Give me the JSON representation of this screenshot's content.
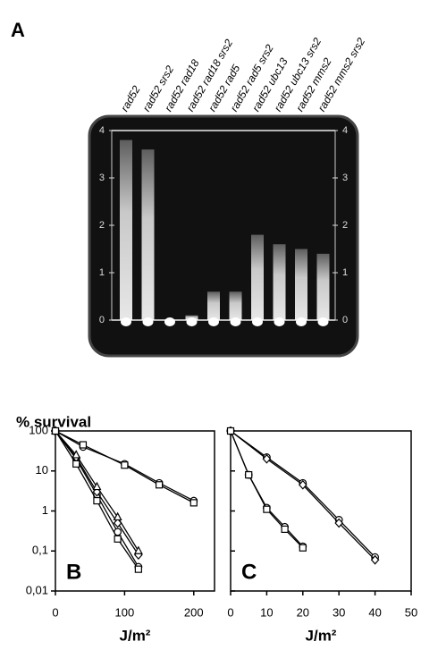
{
  "panel_a": {
    "label": "A",
    "lanes": [
      "rad52",
      "rad52 srs2",
      "rad52 rad18",
      "rad52 rad18 srs2",
      "rad52 rad5",
      "rad52 rad5 srs2",
      "rad52 ubc13",
      "rad52 ubc13 srs2",
      "rad52 mms2",
      "rad52 mms2 srs2"
    ],
    "growth": [
      3.8,
      3.6,
      0,
      0.1,
      0.6,
      0.6,
      1.8,
      1.6,
      1.5,
      1.4
    ],
    "ylim": [
      0,
      4
    ],
    "yticks": [
      0,
      1,
      2,
      3,
      4
    ]
  },
  "y_label": "% survival",
  "chart_data": [
    {
      "type": "line",
      "label": "B",
      "x_label": "J/m²",
      "log_y": true,
      "xlim": [
        0,
        230
      ],
      "xticks": [
        0,
        100,
        200
      ],
      "ylim": [
        0.01,
        100
      ],
      "yticks": [
        100,
        10,
        1,
        {
          "value": 0.1,
          "label": "0,1"
        },
        {
          "value": 0.01,
          "label": "0,01"
        }
      ],
      "series": [
        {
          "color": "#000000",
          "marker": "circle",
          "x": [
            0,
            40,
            100,
            150,
            200
          ],
          "values": [
            100,
            40,
            15,
            5,
            1.8
          ]
        },
        {
          "color": "#000000",
          "marker": "square",
          "x": [
            0,
            40,
            100,
            150,
            200
          ],
          "values": [
            100,
            45,
            14,
            4.5,
            1.6
          ]
        },
        {
          "color": "#000000",
          "marker": "circle",
          "x": [
            0,
            30,
            60,
            90,
            120
          ],
          "values": [
            100,
            20,
            2.5,
            0.3,
            0.04
          ]
        },
        {
          "color": "#000000",
          "marker": "diamond",
          "x": [
            0,
            30,
            60,
            90,
            120
          ],
          "values": [
            100,
            22,
            3,
            0.5,
            0.08
          ]
        },
        {
          "color": "#000000",
          "marker": "triangle",
          "x": [
            0,
            30,
            60,
            90,
            120
          ],
          "values": [
            100,
            25,
            4,
            0.7,
            0.1
          ]
        },
        {
          "color": "#000000",
          "marker": "square",
          "x": [
            0,
            30,
            60,
            90,
            120
          ],
          "values": [
            100,
            15,
            1.8,
            0.2,
            0.035
          ]
        }
      ]
    },
    {
      "type": "line",
      "label": "C",
      "x_label": "J/m²",
      "log_y": true,
      "xlim": [
        0,
        50
      ],
      "xticks": [
        0,
        10,
        20,
        30,
        40,
        50
      ],
      "ylim": [
        0.01,
        100
      ],
      "series": [
        {
          "color": "#000000",
          "marker": "circle",
          "x": [
            0,
            10,
            20,
            30,
            40
          ],
          "values": [
            100,
            22,
            5,
            0.6,
            0.07
          ]
        },
        {
          "color": "#000000",
          "marker": "diamond",
          "x": [
            0,
            10,
            20,
            30,
            40
          ],
          "values": [
            100,
            20,
            4.5,
            0.5,
            0.06
          ]
        },
        {
          "color": "#000000",
          "marker": "circle",
          "x": [
            0,
            5,
            10,
            15,
            20
          ],
          "values": [
            100,
            8,
            1.2,
            0.4,
            0.13
          ]
        },
        {
          "color": "#000000",
          "marker": "square",
          "x": [
            0,
            5,
            10,
            15,
            20
          ],
          "values": [
            100,
            8,
            1.1,
            0.35,
            0.12
          ]
        }
      ]
    }
  ]
}
